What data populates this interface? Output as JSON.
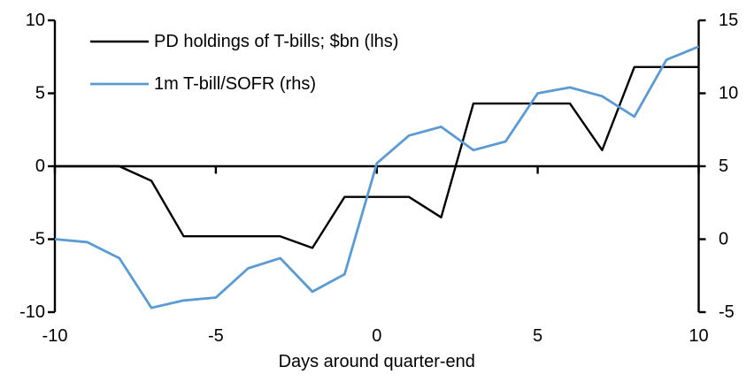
{
  "chart_data": {
    "type": "line",
    "title": "",
    "xlabel": "Days around quarter-end",
    "grid": false,
    "background": "#FFFFFF",
    "legend_position": "top-left",
    "x_axis": {
      "label": "Days around quarter-end",
      "ticks": [
        "-10",
        "-5",
        "0",
        "5",
        "10"
      ],
      "range": [
        -10,
        10
      ]
    },
    "y_axis_left": {
      "ticks": [
        "10",
        "5",
        "0",
        "-5",
        "-10"
      ],
      "range": [
        -10,
        10
      ]
    },
    "y_axis_right": {
      "ticks": [
        "15",
        "10",
        "5",
        "0",
        "-5"
      ],
      "range": [
        -5,
        15
      ]
    },
    "x": [
      -10,
      -9,
      -8,
      -7,
      -6,
      -5,
      -4,
      -3,
      -2,
      -1,
      0,
      1,
      2,
      3,
      4,
      5,
      6,
      7,
      8,
      9,
      10
    ],
    "series": [
      {
        "name": "PD holdings of T-bills; $bn (lhs)",
        "axis": "left",
        "color": "#000000",
        "values": [
          0,
          0,
          0,
          -1.0,
          -4.8,
          -4.8,
          -4.8,
          -4.8,
          -5.6,
          -2.1,
          -2.1,
          -2.1,
          -3.5,
          4.3,
          4.3,
          4.3,
          4.3,
          1.1,
          6.8,
          6.8,
          6.8
        ]
      },
      {
        "name": "1m T-bill/SOFR (rhs)",
        "axis": "right",
        "color": "#5B9BD5",
        "values": [
          0.0,
          -0.2,
          -1.3,
          -4.7,
          -4.2,
          -4.0,
          -2.0,
          -1.3,
          -3.6,
          -2.4,
          5.2,
          7.1,
          7.7,
          6.1,
          6.7,
          10.0,
          10.4,
          9.8,
          8.4,
          12.3,
          13.2
        ]
      }
    ]
  }
}
